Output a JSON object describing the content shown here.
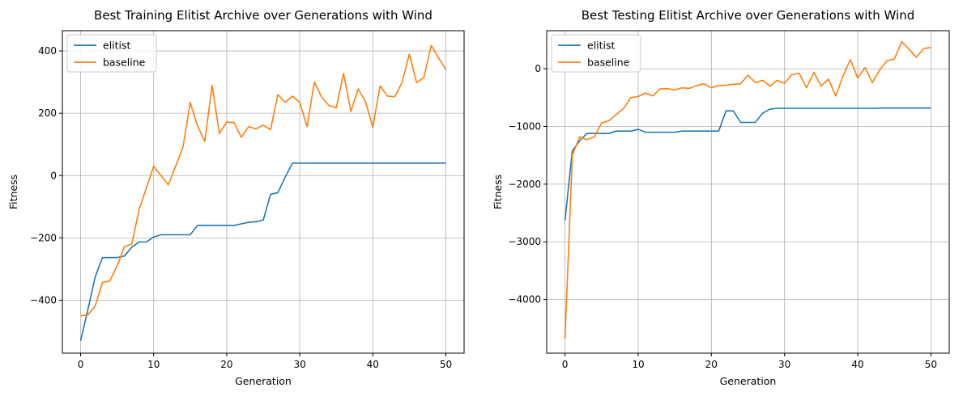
{
  "chart_data": [
    {
      "type": "line",
      "title": "Best Training Elitist Archive over Generations with Wind",
      "xlabel": "Generation",
      "ylabel": "Fitness",
      "xlim": [
        -2.5,
        52.5
      ],
      "ylim": [
        -570,
        465
      ],
      "xticks": [
        0,
        10,
        20,
        30,
        40,
        50
      ],
      "yticks": [
        -400,
        -200,
        0,
        200,
        400
      ],
      "tick_labels_x": [
        "0",
        "10",
        "20",
        "30",
        "40",
        "50"
      ],
      "tick_labels_y": [
        "−400",
        "−200",
        "0",
        "200",
        "400"
      ],
      "grid": true,
      "legend": "top-left",
      "x": [
        0,
        1,
        2,
        3,
        4,
        5,
        6,
        7,
        8,
        9,
        10,
        11,
        12,
        13,
        14,
        15,
        16,
        17,
        18,
        19,
        20,
        21,
        22,
        23,
        24,
        25,
        26,
        27,
        28,
        29,
        30,
        31,
        32,
        33,
        34,
        35,
        36,
        37,
        38,
        39,
        40,
        41,
        42,
        43,
        44,
        45,
        46,
        47,
        48,
        49,
        50
      ],
      "series": [
        {
          "name": "elitist",
          "color": "#1f77b4",
          "values": [
            -530,
            -430,
            -325,
            -263,
            -263,
            -263,
            -258,
            -230,
            -213,
            -213,
            -197,
            -190,
            -190,
            -190,
            -190,
            -190,
            -160,
            -160,
            -160,
            -160,
            -160,
            -160,
            -155,
            -150,
            -148,
            -143,
            -60,
            -55,
            -5,
            40,
            40,
            40,
            40,
            40,
            40,
            40,
            40,
            40,
            40,
            40,
            40,
            40,
            40,
            40,
            40,
            40,
            40,
            40,
            40,
            40,
            40
          ]
        },
        {
          "name": "baseline",
          "color": "#ff7f0e",
          "values": [
            -450,
            -447,
            -418,
            -343,
            -338,
            -290,
            -228,
            -220,
            -110,
            -40,
            30,
            0,
            -30,
            30,
            90,
            235,
            160,
            110,
            290,
            135,
            172,
            170,
            123,
            157,
            150,
            162,
            147,
            260,
            235,
            255,
            235,
            157,
            300,
            252,
            225,
            218,
            328,
            206,
            278,
            238,
            155,
            288,
            255,
            253,
            298,
            390,
            298,
            315,
            418,
            378,
            340
          ]
        }
      ]
    },
    {
      "type": "line",
      "title": "Best Testing Elitist Archive over Generations with Wind",
      "xlabel": "Generation",
      "ylabel": "Fitness",
      "xlim": [
        -2.5,
        52.5
      ],
      "ylim": [
        -4930,
        660
      ],
      "xticks": [
        0,
        10,
        20,
        30,
        40,
        50
      ],
      "yticks": [
        -4000,
        -3000,
        -2000,
        -1000,
        0
      ],
      "tick_labels_x": [
        "0",
        "10",
        "20",
        "30",
        "40",
        "50"
      ],
      "tick_labels_y": [
        "−4000",
        "−3000",
        "−2000",
        "−1000",
        "0"
      ],
      "grid": true,
      "legend": "top-left",
      "x": [
        0,
        1,
        2,
        3,
        4,
        5,
        6,
        7,
        8,
        9,
        10,
        11,
        12,
        13,
        14,
        15,
        16,
        17,
        18,
        19,
        20,
        21,
        22,
        23,
        24,
        25,
        26,
        27,
        28,
        29,
        30,
        31,
        32,
        33,
        34,
        35,
        36,
        37,
        38,
        39,
        40,
        41,
        42,
        43,
        44,
        45,
        46,
        47,
        48,
        49,
        50
      ],
      "series": [
        {
          "name": "elitist",
          "color": "#1f77b4",
          "values": [
            -2630,
            -1420,
            -1250,
            -1120,
            -1120,
            -1120,
            -1120,
            -1080,
            -1080,
            -1080,
            -1050,
            -1100,
            -1100,
            -1100,
            -1100,
            -1100,
            -1080,
            -1080,
            -1080,
            -1080,
            -1080,
            -1080,
            -730,
            -730,
            -930,
            -930,
            -930,
            -770,
            -700,
            -685,
            -685,
            -685,
            -685,
            -685,
            -685,
            -685,
            -685,
            -685,
            -685,
            -685,
            -685,
            -685,
            -685,
            -680,
            -680,
            -680,
            -680,
            -680,
            -680,
            -680,
            -680
          ]
        },
        {
          "name": "baseline",
          "color": "#ff7f0e",
          "values": [
            -4680,
            -1500,
            -1180,
            -1230,
            -1180,
            -940,
            -900,
            -790,
            -690,
            -500,
            -480,
            -420,
            -470,
            -350,
            -345,
            -365,
            -330,
            -340,
            -290,
            -260,
            -330,
            -290,
            -285,
            -270,
            -260,
            -110,
            -240,
            -200,
            -300,
            -200,
            -250,
            -100,
            -80,
            -330,
            -60,
            -300,
            -180,
            -470,
            -120,
            160,
            -160,
            20,
            -240,
            -20,
            140,
            170,
            470,
            340,
            200,
            350,
            370
          ]
        }
      ]
    }
  ]
}
